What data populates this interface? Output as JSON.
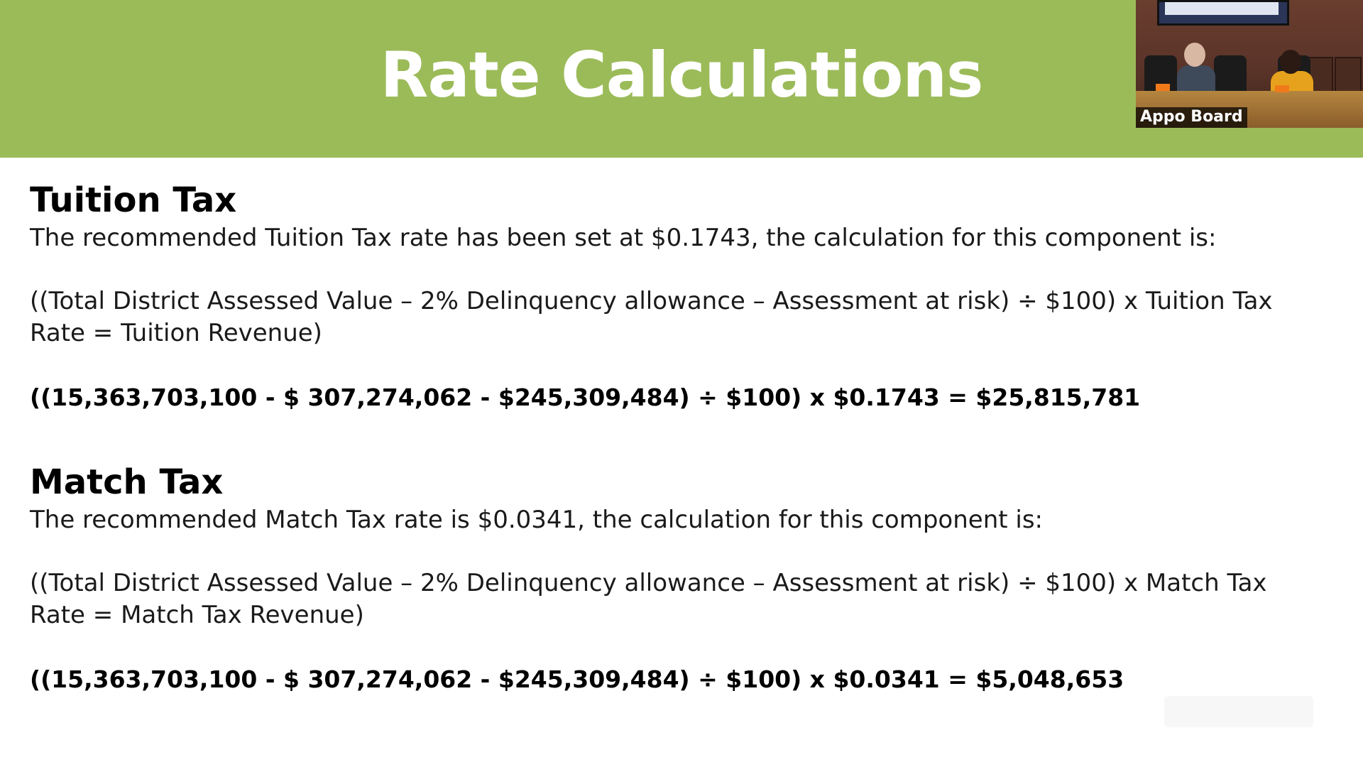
{
  "slide": {
    "title": "Rate Calculations"
  },
  "video": {
    "label": "Appo Board"
  },
  "tuition": {
    "heading": "Tuition Tax",
    "description": "The recommended Tuition Tax rate has been set at $0.1743, the calculation for this component is:",
    "formula_line1": "((Total District Assessed Value – 2% Delinquency allowance – Assessment at risk) ÷ $100) x Tuition Tax",
    "formula_line2": "Rate = Tuition Revenue)",
    "calculation": "((15,363,703,100 - $ 307,274,062 - $245,309,484) ÷ $100) x $0.1743 = $25,815,781"
  },
  "match": {
    "heading": "Match Tax",
    "description": "The recommended Match Tax rate is $0.0341, the calculation for this component is:",
    "formula_line1": "((Total District Assessed Value – 2% Delinquency allowance – Assessment at risk) ÷ $100) x Match Tax",
    "formula_line2": "Rate = Match Tax Revenue)",
    "calculation": "((15,363,703,100 - $ 307,274,062 - $245,309,484) ÷ $100) x $0.0341 = $5,048,653"
  },
  "colors": {
    "title_bar": "#9bbb59",
    "title_text": "#ffffff",
    "body_text": "#1a1a1a"
  }
}
